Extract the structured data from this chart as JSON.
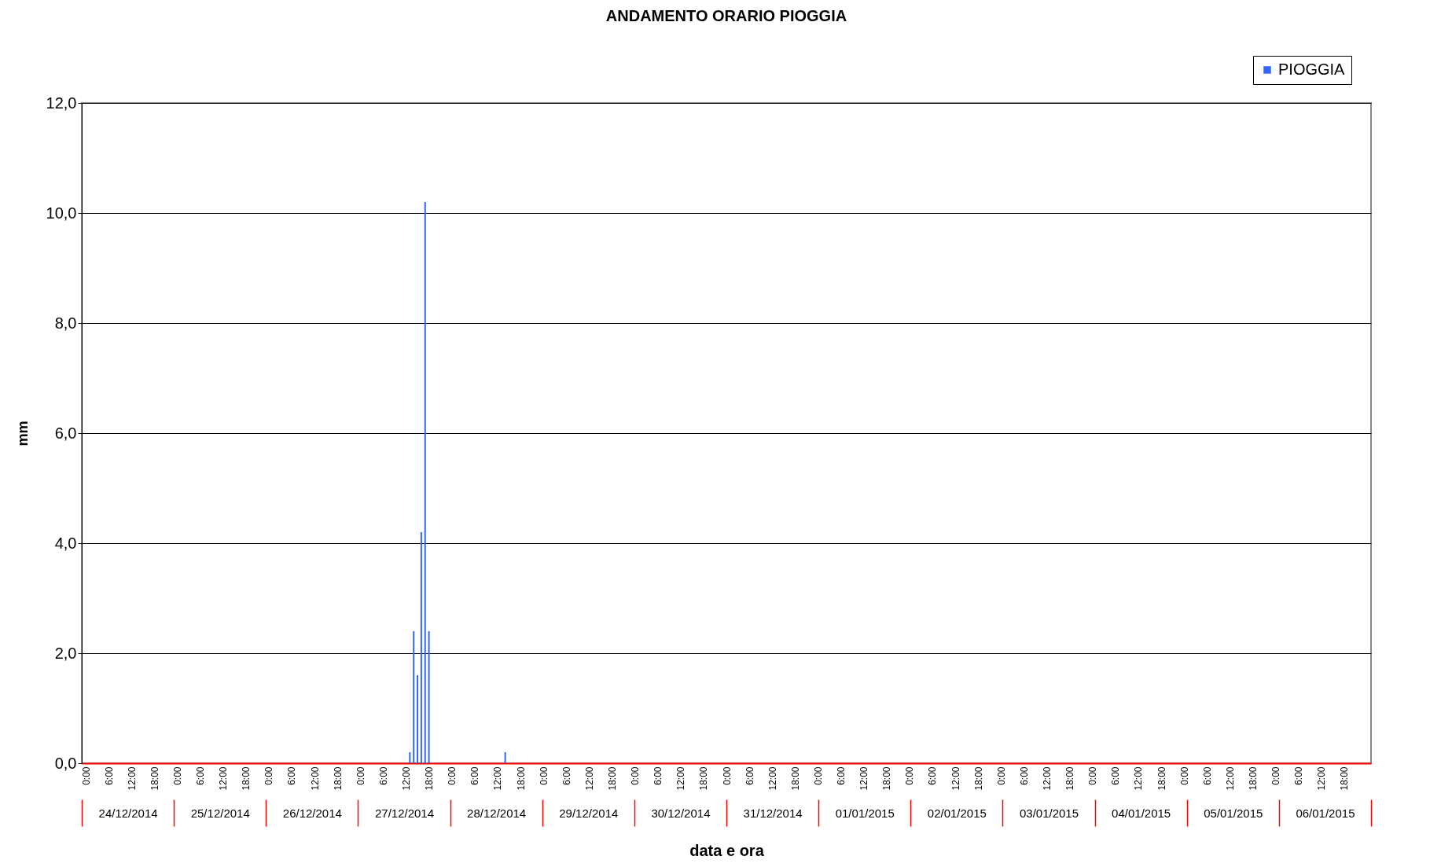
{
  "chart_data": {
    "type": "bar",
    "title": "ANDAMENTO ORARIO PIOGGIA",
    "xlabel": "data e ora",
    "ylabel": "mm",
    "x": [
      "2014-12-27T13:00",
      "2014-12-27T14:00",
      "2014-12-27T15:00",
      "2014-12-27T16:00",
      "2014-12-27T17:00",
      "2014-12-27T18:00",
      "2014-12-28T14:00"
    ],
    "series": [
      {
        "name": "PIOGGIA",
        "color": "#3366ff",
        "values": [
          0.2,
          2.4,
          1.6,
          4.2,
          10.2,
          2.4,
          0.2
        ]
      }
    ],
    "xlim": [
      "2014-12-24T00:00",
      "2015-01-07T00:00"
    ],
    "xticks": [
      {
        "value": "2014-12-24T00:00",
        "label": "0:00"
      },
      {
        "value": "2014-12-24T06:00",
        "label": "6:00"
      },
      {
        "value": "2014-12-24T12:00",
        "label": "12:00"
      },
      {
        "value": "2014-12-24T18:00",
        "label": "18:00"
      },
      {
        "value": "2014-12-25T00:00",
        "label": "0:00"
      },
      {
        "value": "2014-12-25T06:00",
        "label": "6:00"
      },
      {
        "value": "2014-12-25T12:00",
        "label": "12:00"
      },
      {
        "value": "2014-12-25T18:00",
        "label": "18:00"
      },
      {
        "value": "2014-12-26T00:00",
        "label": "0:00"
      },
      {
        "value": "2014-12-26T06:00",
        "label": "6:00"
      },
      {
        "value": "2014-12-26T12:00",
        "label": "12:00"
      },
      {
        "value": "2014-12-26T18:00",
        "label": "18:00"
      },
      {
        "value": "2014-12-27T00:00",
        "label": "0:00"
      },
      {
        "value": "2014-12-27T06:00",
        "label": "6:00"
      },
      {
        "value": "2014-12-27T12:00",
        "label": "12:00"
      },
      {
        "value": "2014-12-27T18:00",
        "label": "18:00"
      },
      {
        "value": "2014-12-28T00:00",
        "label": "0:00"
      },
      {
        "value": "2014-12-28T06:00",
        "label": "6:00"
      },
      {
        "value": "2014-12-28T12:00",
        "label": "12:00"
      },
      {
        "value": "2014-12-28T18:00",
        "label": "18:00"
      },
      {
        "value": "2014-12-29T00:00",
        "label": "0:00"
      },
      {
        "value": "2014-12-29T06:00",
        "label": "6:00"
      },
      {
        "value": "2014-12-29T12:00",
        "label": "12:00"
      },
      {
        "value": "2014-12-29T18:00",
        "label": "18:00"
      },
      {
        "value": "2014-12-30T00:00",
        "label": "0:00"
      },
      {
        "value": "2014-12-30T06:00",
        "label": "6:00"
      },
      {
        "value": "2014-12-30T12:00",
        "label": "12:00"
      },
      {
        "value": "2014-12-30T18:00",
        "label": "18:00"
      },
      {
        "value": "2014-12-31T00:00",
        "label": "0:00"
      },
      {
        "value": "2014-12-31T06:00",
        "label": "6:00"
      },
      {
        "value": "2014-12-31T12:00",
        "label": "12:00"
      },
      {
        "value": "2014-12-31T18:00",
        "label": "18:00"
      },
      {
        "value": "2015-01-01T00:00",
        "label": "0:00"
      },
      {
        "value": "2015-01-01T06:00",
        "label": "6:00"
      },
      {
        "value": "2015-01-01T12:00",
        "label": "12:00"
      },
      {
        "value": "2015-01-01T18:00",
        "label": "18:00"
      },
      {
        "value": "2015-01-02T00:00",
        "label": "0:00"
      },
      {
        "value": "2015-01-02T06:00",
        "label": "6:00"
      },
      {
        "value": "2015-01-02T12:00",
        "label": "12:00"
      },
      {
        "value": "2015-01-02T18:00",
        "label": "18:00"
      },
      {
        "value": "2015-01-03T00:00",
        "label": "0:00"
      },
      {
        "value": "2015-01-03T06:00",
        "label": "6:00"
      },
      {
        "value": "2015-01-03T12:00",
        "label": "12:00"
      },
      {
        "value": "2015-01-03T18:00",
        "label": "18:00"
      },
      {
        "value": "2015-01-04T00:00",
        "label": "0:00"
      },
      {
        "value": "2015-01-04T06:00",
        "label": "6:00"
      },
      {
        "value": "2015-01-04T12:00",
        "label": "12:00"
      },
      {
        "value": "2015-01-04T18:00",
        "label": "18:00"
      },
      {
        "value": "2015-01-05T00:00",
        "label": "0:00"
      },
      {
        "value": "2015-01-05T06:00",
        "label": "6:00"
      },
      {
        "value": "2015-01-05T12:00",
        "label": "12:00"
      },
      {
        "value": "2015-01-05T18:00",
        "label": "18:00"
      },
      {
        "value": "2015-01-06T00:00",
        "label": "0:00"
      },
      {
        "value": "2015-01-06T06:00",
        "label": "6:00"
      },
      {
        "value": "2015-01-06T12:00",
        "label": "12:00"
      },
      {
        "value": "2015-01-06T18:00",
        "label": "18:00"
      }
    ],
    "x2lim": [
      "2014-12-24T00:00",
      "2015-01-07T00:00"
    ],
    "x2ticks": [
      {
        "value": "2014-12-24T12:00",
        "label": "24/12/2014"
      },
      {
        "value": "2014-12-25T12:00",
        "label": "25/12/2014"
      },
      {
        "value": "2014-12-26T12:00",
        "label": "26/12/2014"
      },
      {
        "value": "2014-12-27T12:00",
        "label": "27/12/2014"
      },
      {
        "value": "2014-12-28T12:00",
        "label": "28/12/2014"
      },
      {
        "value": "2014-12-29T12:00",
        "label": "29/12/2014"
      },
      {
        "value": "2014-12-30T12:00",
        "label": "30/12/2014"
      },
      {
        "value": "2014-12-31T12:00",
        "label": "31/12/2014"
      },
      {
        "value": "2015-01-01T12:00",
        "label": "01/01/2015"
      },
      {
        "value": "2015-01-02T12:00",
        "label": "02/01/2015"
      },
      {
        "value": "2015-01-03T12:00",
        "label": "03/01/2015"
      },
      {
        "value": "2015-01-04T12:00",
        "label": "04/01/2015"
      },
      {
        "value": "2015-01-05T12:00",
        "label": "05/01/2015"
      },
      {
        "value": "2015-01-06T12:00",
        "label": "06/01/2015"
      }
    ],
    "ylim": [
      0,
      12
    ],
    "yticks": [
      {
        "value": 0,
        "label": "0,0"
      },
      {
        "value": 2,
        "label": "2,0"
      },
      {
        "value": 4,
        "label": "4,0"
      },
      {
        "value": 6,
        "label": "6,0"
      },
      {
        "value": 8,
        "label": "8,0"
      },
      {
        "value": 10,
        "label": "10,0"
      },
      {
        "value": 12,
        "label": "12,0"
      }
    ],
    "grid": "y",
    "legend": "top right"
  }
}
